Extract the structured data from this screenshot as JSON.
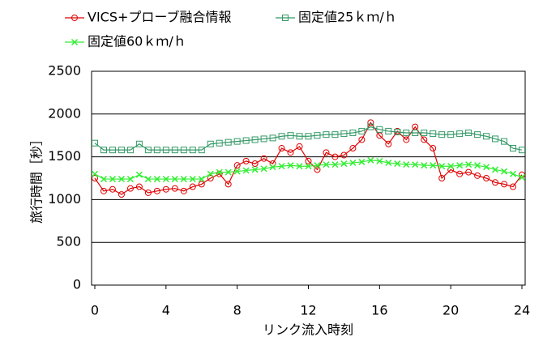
{
  "chart_data": {
    "type": "line",
    "xlabel": "リンク流入時刻",
    "ylabel": "旅行時間［秒］",
    "x": [
      0,
      0.5,
      1,
      1.5,
      2,
      2.5,
      3,
      3.5,
      4,
      4.5,
      5,
      5.5,
      6,
      6.5,
      7,
      7.5,
      8,
      8.5,
      9,
      9.5,
      10,
      10.5,
      11,
      11.5,
      12,
      12.5,
      13,
      13.5,
      14,
      14.5,
      15,
      15.5,
      16,
      16.5,
      17,
      17.5,
      18,
      18.5,
      19,
      19.5,
      20,
      20.5,
      21,
      21.5,
      22,
      22.5,
      23,
      23.5,
      24
    ],
    "series": [
      {
        "name": "VICS+プローブ融合情報",
        "color": "#e00000",
        "marker": "circle",
        "values": [
          1250,
          1100,
          1120,
          1060,
          1130,
          1150,
          1080,
          1100,
          1120,
          1130,
          1100,
          1150,
          1180,
          1250,
          1300,
          1180,
          1400,
          1450,
          1420,
          1480,
          1420,
          1600,
          1550,
          1620,
          1450,
          1350,
          1550,
          1500,
          1520,
          1600,
          1700,
          1900,
          1750,
          1650,
          1800,
          1700,
          1850,
          1700,
          1600,
          1250,
          1350,
          1300,
          1320,
          1280,
          1250,
          1200,
          1180,
          1150,
          1290
        ]
      },
      {
        "name": "固定値25ｋｍ/ｈ",
        "color": "#339966",
        "marker": "square",
        "values": [
          1660,
          1580,
          1580,
          1580,
          1580,
          1650,
          1580,
          1580,
          1580,
          1580,
          1580,
          1580,
          1580,
          1650,
          1660,
          1670,
          1680,
          1690,
          1700,
          1710,
          1720,
          1740,
          1750,
          1740,
          1740,
          1750,
          1760,
          1760,
          1770,
          1780,
          1800,
          1850,
          1820,
          1800,
          1790,
          1780,
          1780,
          1780,
          1770,
          1760,
          1760,
          1770,
          1780,
          1760,
          1740,
          1710,
          1680,
          1600,
          1580
        ]
      },
      {
        "name": "固定値60ｋｍ/ｈ",
        "color": "#33ee33",
        "marker": "cross",
        "values": [
          1300,
          1240,
          1240,
          1240,
          1240,
          1290,
          1240,
          1240,
          1240,
          1240,
          1240,
          1240,
          1240,
          1300,
          1320,
          1320,
          1330,
          1340,
          1350,
          1360,
          1380,
          1390,
          1400,
          1390,
          1390,
          1400,
          1410,
          1410,
          1420,
          1430,
          1440,
          1460,
          1450,
          1430,
          1420,
          1410,
          1410,
          1400,
          1400,
          1390,
          1390,
          1400,
          1410,
          1400,
          1380,
          1350,
          1330,
          1300,
          1260
        ]
      }
    ],
    "xlim": [
      0,
      24
    ],
    "xticks": [
      0,
      4,
      8,
      12,
      16,
      20,
      24
    ],
    "ylim": [
      0,
      2500
    ],
    "yticks": [
      0,
      500,
      1000,
      1500,
      2000,
      2500
    ],
    "grid": true
  }
}
